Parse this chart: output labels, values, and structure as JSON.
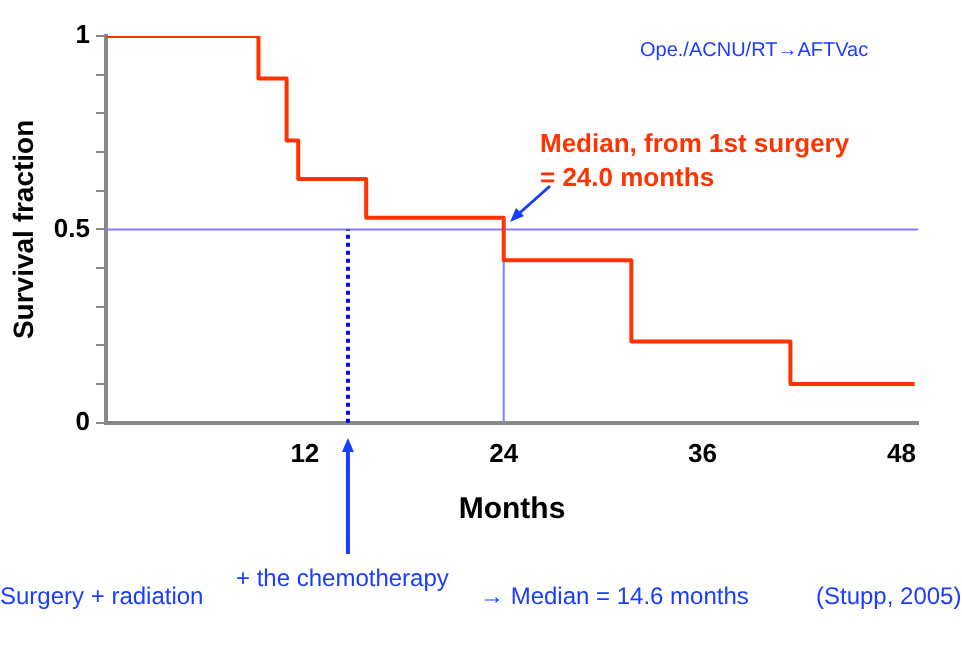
{
  "chart_data": {
    "type": "step",
    "xlabel": "Months",
    "ylabel": "Survival fraction",
    "x": [
      0,
      9.2,
      10.9,
      11.6,
      15.7,
      24,
      31.7,
      41.3,
      48.8
    ],
    "series": [
      {
        "color": "#ff3300",
        "values": [
          1,
          0.89,
          0.73,
          0.63,
          0.53,
          0.42,
          0.21,
          0.1,
          0.1
        ]
      }
    ],
    "xlim": [
      0,
      49
    ],
    "ylim": [
      0,
      1
    ],
    "xticks": [
      12,
      24,
      36,
      48
    ],
    "yticks": [
      0,
      {
        "value": 0.1,
        "label": null
      },
      {
        "value": 0.2,
        "label": null
      },
      {
        "value": 0.3,
        "label": null
      },
      {
        "value": 0.4,
        "label": null
      },
      0.5,
      {
        "value": 0.6,
        "label": null
      },
      {
        "value": 0.7,
        "label": null
      },
      {
        "value": 0.8,
        "label": null
      },
      {
        "value": 0.9,
        "label": null
      },
      1
    ],
    "ref_lines": [
      {
        "axis": "y",
        "value": 0.5,
        "color": "#8080ff"
      },
      {
        "axis": "x",
        "value": 24,
        "color": "#8080ff"
      },
      {
        "axis": "x",
        "value": 14.6,
        "color": "#0000ff",
        "line_style": "dotted"
      }
    ],
    "annotations": [
      "Median, from 1st surgery\n= 24.0 months",
      "Ope./ACNU/RT→AFTVac",
      "Surgery + radiation",
      "+ the chemotherapy",
      "→ Median = 14.6 months",
      "(Stupp, 2005)"
    ],
    "grid": false,
    "legend": false,
    "marker": "none",
    "line_style": "solid"
  }
}
